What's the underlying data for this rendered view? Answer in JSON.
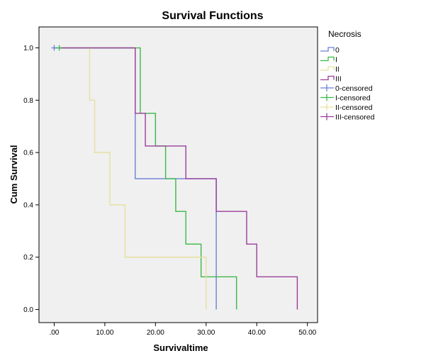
{
  "chart_data": {
    "type": "line",
    "title": "Survival Functions",
    "xlabel": "Survivaltime",
    "ylabel": "Cum Survival",
    "xlim": [
      -3,
      52
    ],
    "ylim": [
      -0.05,
      1.08
    ],
    "x_ticks": [
      0,
      10,
      20,
      30,
      40,
      50
    ],
    "x_tick_labels": [
      ".00",
      "10.00",
      "20.00",
      "30.00",
      "40.00",
      "50.00"
    ],
    "y_ticks": [
      0,
      0.2,
      0.4,
      0.6,
      0.8,
      1.0
    ],
    "y_tick_labels": [
      "0.0",
      "0.2",
      "0.4",
      "0.6",
      "0.8",
      "1.0"
    ],
    "grid": false,
    "legend_title": "Necrosis",
    "legend_position": "right",
    "series": [
      {
        "name": "0",
        "color": "#6a7fd8",
        "x": [
          0,
          16,
          16,
          32,
          32
        ],
        "y": [
          1.0,
          1.0,
          0.5,
          0.5,
          0.0
        ]
      },
      {
        "name": "I",
        "color": "#3cb84a",
        "x": [
          1,
          17,
          17,
          20,
          20,
          22,
          22,
          24,
          24,
          26,
          26,
          29,
          29,
          36,
          36
        ],
        "y": [
          1.0,
          1.0,
          0.75,
          0.75,
          0.625,
          0.625,
          0.5,
          0.5,
          0.375,
          0.375,
          0.25,
          0.25,
          0.125,
          0.125,
          0.0
        ]
      },
      {
        "name": "II",
        "color": "#e6e0a0",
        "x": [
          7,
          7,
          8,
          8,
          11,
          11,
          14,
          14,
          30,
          30
        ],
        "y": [
          1.0,
          0.8,
          0.8,
          0.6,
          0.6,
          0.4,
          0.4,
          0.2,
          0.2,
          0.0
        ]
      },
      {
        "name": "III",
        "color": "#9a3e9a",
        "x": [
          1,
          16,
          16,
          18,
          18,
          26,
          26,
          32,
          32,
          38,
          38,
          40,
          40,
          48,
          48
        ],
        "y": [
          1.0,
          1.0,
          0.75,
          0.75,
          0.625,
          0.625,
          0.5,
          0.5,
          0.375,
          0.375,
          0.25,
          0.25,
          0.125,
          0.125,
          0.0
        ]
      }
    ],
    "censored": [
      {
        "name": "0-censored",
        "color": "#6a7fd8",
        "points": [
          [
            0,
            1.0
          ]
        ]
      },
      {
        "name": "I-censored",
        "color": "#3cb84a",
        "points": [
          [
            1,
            1.0
          ]
        ]
      },
      {
        "name": "II-censored",
        "color": "#e6e0a0",
        "points": []
      },
      {
        "name": "III-censored",
        "color": "#9a3e9a",
        "points": []
      }
    ],
    "legend": [
      {
        "label": "0",
        "color": "#6a7fd8",
        "kind": "line"
      },
      {
        "label": "I",
        "color": "#3cb84a",
        "kind": "line"
      },
      {
        "label": "II",
        "color": "#e6e0a0",
        "kind": "line"
      },
      {
        "label": "III",
        "color": "#9a3e9a",
        "kind": "line"
      },
      {
        "label": "0-censored",
        "color": "#6a7fd8",
        "kind": "censor"
      },
      {
        "label": "I-censored",
        "color": "#3cb84a",
        "kind": "censor"
      },
      {
        "label": "II-censored",
        "color": "#e6e0a0",
        "kind": "censor"
      },
      {
        "label": "III-censored",
        "color": "#9a3e9a",
        "kind": "censor"
      }
    ],
    "colors": {
      "plot_background": "#f0f0f0",
      "frame": "#000000"
    }
  }
}
